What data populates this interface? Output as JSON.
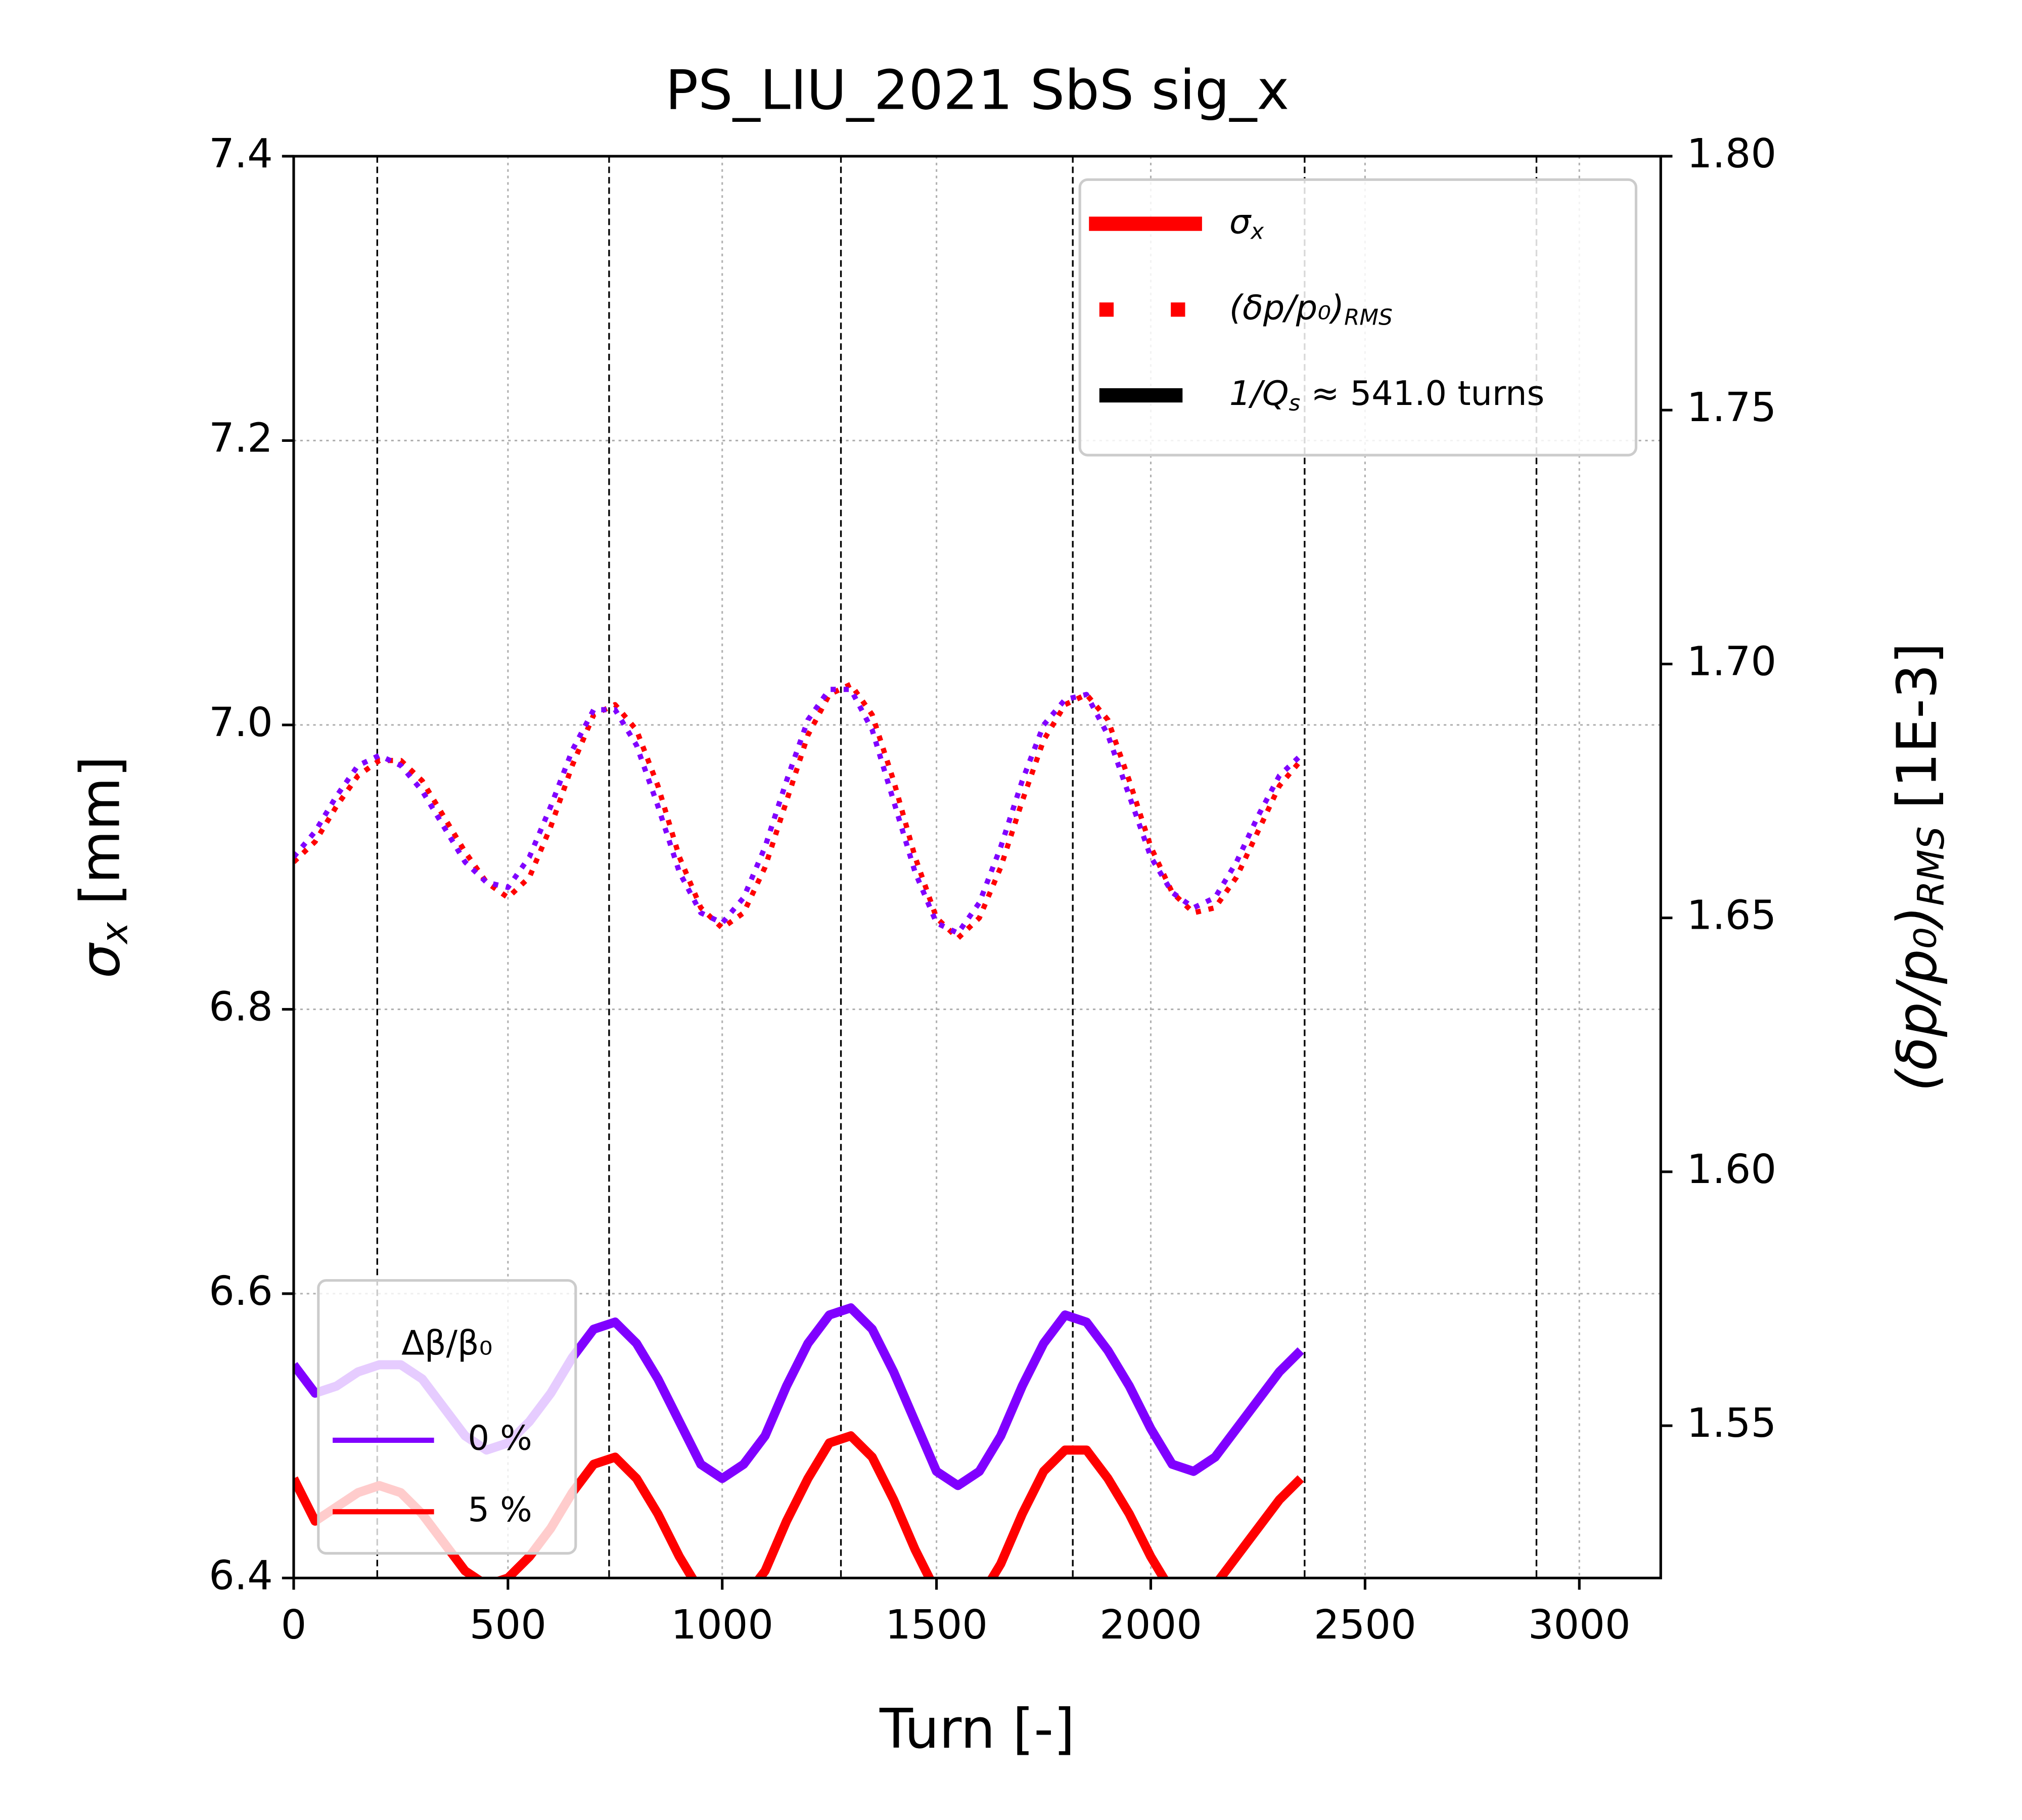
{
  "chart_data": {
    "type": "line",
    "title": "PS_LIU_2021 SbS sig_x",
    "x_label": "Turn [-]",
    "y_label": {
      "main": "σ",
      "sub": "x",
      "unit": " [mm]"
    },
    "y2_label": {
      "main": "(δp/p₀)",
      "sub": "RMS",
      "unit": " [1E-3]"
    },
    "xlim": [
      0,
      3190
    ],
    "xticks": [
      0,
      500,
      1000,
      1500,
      2000,
      2500,
      3000
    ],
    "ylim": [
      6.4,
      7.4
    ],
    "yticks": [
      6.4,
      6.6,
      6.8,
      {
        "value": 7,
        "label": "7.0"
      },
      7.2,
      7.4
    ],
    "y2lim": [
      1.52,
      1.8
    ],
    "y2ticks": [
      1.55,
      {
        "value": 1.6,
        "label": "1.60"
      },
      1.65,
      {
        "value": 1.7,
        "label": "1.70"
      },
      1.75,
      {
        "value": 1.8,
        "label": "1.80"
      }
    ],
    "grid": true,
    "vlines": [
      195,
      736,
      1277,
      1818,
      2359,
      2900
    ],
    "x": [
      0,
      50,
      100,
      150,
      200,
      250,
      300,
      350,
      400,
      450,
      500,
      550,
      600,
      650,
      700,
      750,
      800,
      850,
      900,
      950,
      1000,
      1050,
      1100,
      1150,
      1200,
      1250,
      1300,
      1350,
      1400,
      1450,
      1500,
      1550,
      1600,
      1650,
      1700,
      1750,
      1800,
      1850,
      1900,
      1950,
      2000,
      2050,
      2100,
      2150,
      2200,
      2250,
      2300,
      2350
    ],
    "series": [
      {
        "name": "0 %",
        "color": "#8000ff",
        "style": "solid",
        "values": [
          6.55,
          6.53,
          6.535,
          6.545,
          6.55,
          6.55,
          6.54,
          6.52,
          6.5,
          6.49,
          6.495,
          6.51,
          6.53,
          6.555,
          6.575,
          6.58,
          6.565,
          6.54,
          6.51,
          6.48,
          6.47,
          6.48,
          6.5,
          6.535,
          6.565,
          6.585,
          6.59,
          6.575,
          6.545,
          6.51,
          6.475,
          6.465,
          6.475,
          6.5,
          6.535,
          6.565,
          6.585,
          6.58,
          6.56,
          6.535,
          6.505,
          6.48,
          6.475,
          6.485,
          6.505,
          6.525,
          6.545,
          6.56
        ]
      },
      {
        "name": "5 %",
        "color": "#ff0000",
        "style": "solid",
        "values": [
          6.47,
          6.44,
          6.45,
          6.46,
          6.465,
          6.46,
          6.445,
          6.425,
          6.405,
          6.395,
          6.4,
          6.415,
          6.435,
          6.46,
          6.48,
          6.485,
          6.47,
          6.445,
          6.415,
          6.39,
          6.38,
          6.385,
          6.405,
          6.44,
          6.47,
          6.495,
          6.5,
          6.485,
          6.455,
          6.42,
          6.39,
          6.375,
          6.385,
          6.41,
          6.445,
          6.475,
          6.49,
          6.49,
          6.47,
          6.445,
          6.415,
          6.39,
          6.385,
          6.395,
          6.415,
          6.435,
          6.455,
          6.47
        ]
      },
      {
        "color": "#ff0000",
        "style": "dotted",
        "axis": "y2",
        "values": [
          1.661,
          1.665,
          1.672,
          1.678,
          1.681,
          1.681,
          1.677,
          1.67,
          1.663,
          1.657,
          1.654,
          1.658,
          1.668,
          1.68,
          1.69,
          1.692,
          1.687,
          1.676,
          1.662,
          1.652,
          1.648,
          1.651,
          1.66,
          1.673,
          1.686,
          1.694,
          1.696,
          1.69,
          1.677,
          1.662,
          1.65,
          1.646,
          1.65,
          1.66,
          1.673,
          1.685,
          1.692,
          1.694,
          1.689,
          1.677,
          1.664,
          1.655,
          1.651,
          1.652,
          1.658,
          1.667,
          1.676,
          1.681
        ]
      },
      {
        "color": "#8000ff",
        "style": "dotted",
        "axis": "y2",
        "values": [
          1.662,
          1.667,
          1.674,
          1.68,
          1.682,
          1.68,
          1.675,
          1.668,
          1.661,
          1.657,
          1.656,
          1.662,
          1.672,
          1.683,
          1.691,
          1.691,
          1.684,
          1.672,
          1.659,
          1.651,
          1.649,
          1.654,
          1.664,
          1.677,
          1.689,
          1.695,
          1.695,
          1.687,
          1.673,
          1.659,
          1.649,
          1.647,
          1.653,
          1.664,
          1.677,
          1.688,
          1.693,
          1.694,
          1.686,
          1.674,
          1.662,
          1.655,
          1.652,
          1.654,
          1.661,
          1.67,
          1.678,
          1.682
        ]
      }
    ],
    "legend_title": "Δβ/β₀",
    "style_legend": [
      {
        "main": "σ",
        "sub": "x",
        "color": "#ff0000",
        "style": "thick"
      },
      {
        "main": "(δp/p₀)",
        "sub": "RMS",
        "color": "#ff0000",
        "style": "dotted"
      },
      {
        "main": "1/Q",
        "sub": "s",
        "rest": " ≈  541.0 turns",
        "color": "#000000",
        "style": "thick"
      }
    ]
  }
}
